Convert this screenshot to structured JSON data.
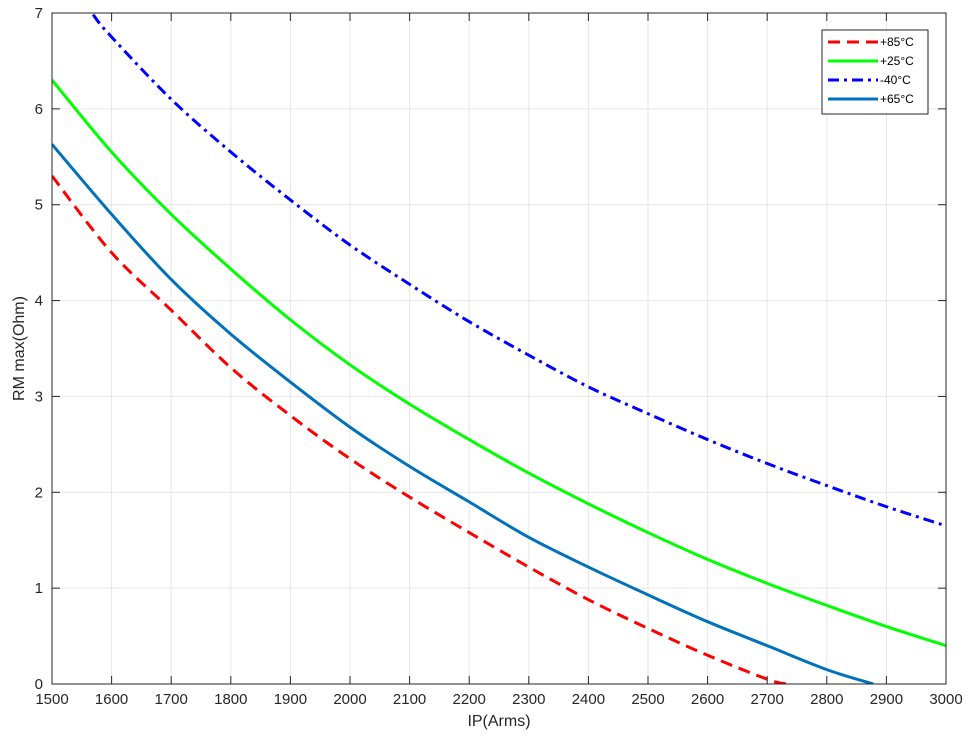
{
  "chart_data": {
    "type": "line",
    "title": "",
    "xlabel": "IP(Arms)",
    "ylabel": "RM max(Ohm)",
    "xlim": [
      1500,
      3000
    ],
    "ylim": [
      0,
      7
    ],
    "xticks": [
      1500,
      1600,
      1700,
      1800,
      1900,
      2000,
      2100,
      2200,
      2300,
      2400,
      2500,
      2600,
      2700,
      2800,
      2900,
      3000
    ],
    "yticks": [
      0,
      1,
      2,
      3,
      4,
      5,
      6,
      7
    ],
    "grid": true,
    "legend_position": "top-right",
    "x": [
      1500,
      1600,
      1700,
      1800,
      1900,
      2000,
      2100,
      2200,
      2300,
      2400,
      2500,
      2600,
      2700,
      2800,
      2900,
      3000
    ],
    "series": [
      {
        "name": "+85°C",
        "color": "#ff0000",
        "style": "dashed",
        "values": [
          5.3,
          4.5,
          3.9,
          3.3,
          2.8,
          2.35,
          1.95,
          1.58,
          1.22,
          0.88,
          0.58,
          0.3,
          0.05,
          null,
          null,
          null
        ]
      },
      {
        "name": "+25°C",
        "color": "#00ff00",
        "style": "solid",
        "values": [
          6.3,
          5.55,
          4.9,
          4.33,
          3.8,
          3.33,
          2.92,
          2.55,
          2.2,
          1.88,
          1.58,
          1.3,
          1.05,
          0.82,
          0.6,
          0.4
        ]
      },
      {
        "name": "-40°C",
        "color": "#0000ff",
        "style": "dashdot",
        "values": [
          7.6,
          6.75,
          6.1,
          5.55,
          5.05,
          4.58,
          4.17,
          3.78,
          3.43,
          3.1,
          2.82,
          2.55,
          2.3,
          2.07,
          1.85,
          1.65
        ]
      },
      {
        "name": "+65°C",
        "color": "#0072bd",
        "style": "solid",
        "values": [
          5.63,
          4.9,
          4.22,
          3.65,
          3.15,
          2.68,
          2.27,
          1.9,
          1.53,
          1.22,
          0.93,
          0.65,
          0.4,
          0.15,
          null,
          null
        ]
      }
    ],
    "extra_points": {
      "+85°C": [
        [
          2733,
          0
        ]
      ],
      "+65°C": [
        [
          2878,
          0
        ]
      ],
      "-40°C": [
        [
          1567,
          7
        ]
      ]
    }
  }
}
